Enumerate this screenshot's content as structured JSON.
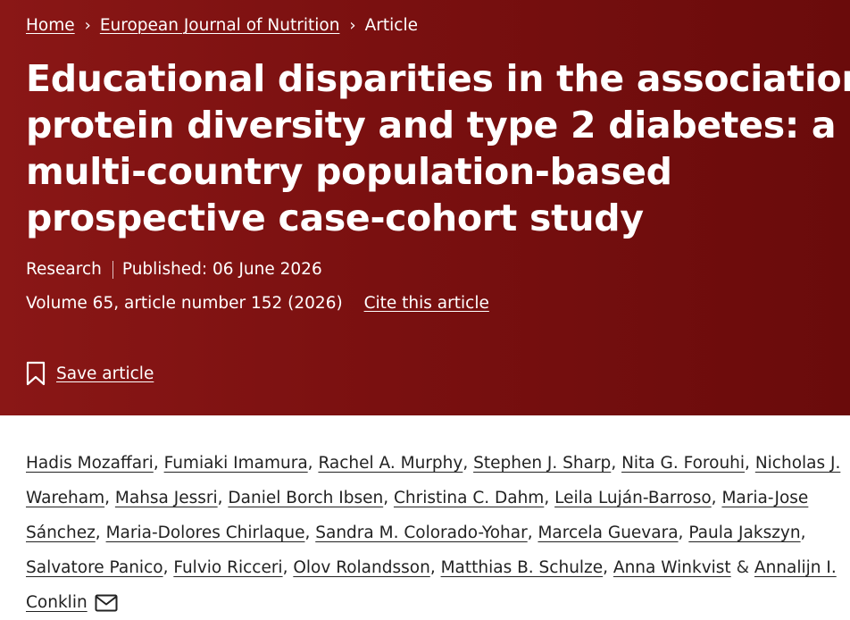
{
  "breadcrumb": {
    "home": "Home",
    "journal": "European Journal of Nutrition",
    "current": "Article",
    "separator": "›"
  },
  "title_lines": [
    "Educational disparities in the association of",
    "protein diversity and type 2 diabetes: a",
    "multi-country population-based",
    "prospective case-cohort study"
  ],
  "meta": {
    "type": "Research",
    "published": "Published: 06 June 2026",
    "volume": "Volume 65, article number 152 (2026)",
    "cite_label": "Cite this article"
  },
  "save_label": "Save article",
  "authors": {
    "names": [
      "Hadis Mozaffari",
      "Fumiaki Imamura",
      "Rachel A. Murphy",
      "Stephen J. Sharp",
      "Nita G. Forouhi",
      "Nicholas J. Wareham",
      "Mahsa Jessri",
      "Daniel Borch Ibsen",
      "Christina C. Dahm",
      "Leila Luján-Barroso",
      "Maria-Jose Sánchez",
      "Maria-Dolores Chirlaque",
      "Sandra M. Colorado-Yohar",
      "Marcela Guevara",
      "Paula Jakszyn",
      "Salvatore Panico",
      "Fulvio Ricceri",
      "Olov Rolandsson",
      "Matthias B. Schulze",
      "Anna Winkvist",
      "Annalijn I. Conklin"
    ],
    "fragments": {
      "n5_a": "Nicholas J.",
      "n5_b": "Wareham",
      "n10_a": "Maria-Jose",
      "n10_b": "Sánchez",
      "n20_a": "Annalijn I.",
      "n20_b": "Conklin"
    },
    "and": "&"
  },
  "icons": {
    "chevron": "chevron-right-icon",
    "bookmark": "bookmark-icon",
    "email": "envelope-icon"
  },
  "colors": {
    "hero_start": "#8a1716",
    "hero_end": "#6a0b0b",
    "text_dark": "#222222"
  }
}
